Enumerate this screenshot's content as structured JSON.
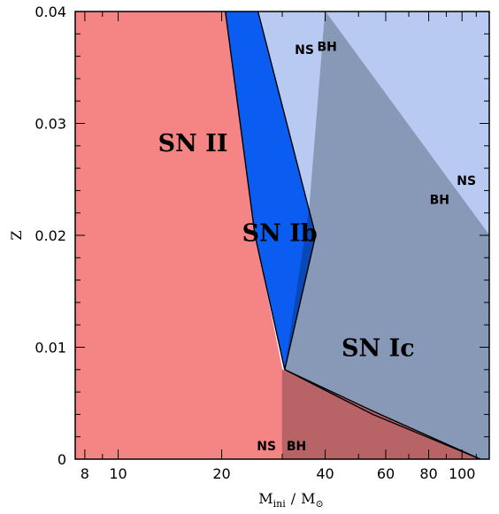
{
  "chart_data": {
    "type": "area",
    "title": "",
    "xlabel": "M_ini / M_⊙",
    "xlabel_main": "M",
    "xlabel_sub": "ini",
    "xlabel_sep": "/",
    "xlabel_unit": "M",
    "xlabel_unit_sub": "⊙",
    "ylabel": "Z",
    "xscale": "log",
    "xlim": [
      7.5,
      120
    ],
    "ylim": [
      0,
      0.04
    ],
    "xticks": [
      8,
      10,
      20,
      40,
      60,
      80,
      100
    ],
    "xtick_labels": [
      "8",
      "10",
      "20",
      "40",
      "60",
      "80",
      "100"
    ],
    "yticks": [
      0,
      0.01,
      0.02,
      0.03,
      0.04
    ],
    "ytick_labels": [
      "0",
      "0.01",
      "0.02",
      "0.03",
      "0.04"
    ],
    "regions": [
      {
        "name": "SN II",
        "color": "#f48584",
        "polygon": [
          [
            7.5,
            0
          ],
          [
            30,
            0
          ],
          [
            30,
            0.008
          ],
          [
            25,
            0.02
          ],
          [
            20.5,
            0.04
          ],
          [
            7.5,
            0.04
          ]
        ]
      },
      {
        "name": "SN II (BH)",
        "color": "#b86467",
        "polygon": [
          [
            30,
            0
          ],
          [
            120,
            0
          ],
          [
            30,
            0.008
          ]
        ]
      },
      {
        "name": "SN Ib",
        "color": "#0b5cf0",
        "polygon": [
          [
            20.5,
            0.04
          ],
          [
            25.5,
            0.04
          ],
          [
            37.5,
            0.02
          ],
          [
            30.5,
            0.008
          ],
          [
            25,
            0.02
          ]
        ]
      },
      {
        "name": "SN Ib (BH)",
        "color": "#0a48b8",
        "polygon": [
          [
            37.5,
            0.02
          ],
          [
            36,
            0.0225
          ],
          [
            30.5,
            0.008
          ]
        ]
      },
      {
        "name": "SN Ib (low Z)",
        "color": "#0b5cf0",
        "polygon": [
          [
            30.5,
            0.008
          ],
          [
            55,
            0.0043
          ],
          [
            113,
            0
          ]
        ]
      },
      {
        "name": "SN Ic (NS)",
        "color": "#b8caf2",
        "polygon": [
          [
            25.5,
            0.04
          ],
          [
            120,
            0.04
          ],
          [
            120,
            0.02
          ],
          [
            40,
            0.04
          ],
          [
            37.5,
            0.02
          ],
          [
            36,
            0.0225
          ]
        ]
      },
      {
        "name": "SN Ic (BH)",
        "color": "#8799b7",
        "polygon": [
          [
            36,
            0.0225
          ],
          [
            40,
            0.04
          ],
          [
            120,
            0.02
          ],
          [
            120,
            0
          ],
          [
            113,
            0
          ],
          [
            55,
            0.0043
          ],
          [
            30.5,
            0.008
          ],
          [
            37.5,
            0.02
          ]
        ]
      }
    ],
    "boundaries": [
      [
        [
          20.5,
          0.04
        ],
        [
          25,
          0.02
        ],
        [
          30.5,
          0.008
        ],
        [
          37.5,
          0.02
        ],
        [
          25.5,
          0.04
        ]
      ],
      [
        [
          30.5,
          0.008
        ],
        [
          55,
          0.0043
        ],
        [
          113,
          0
        ]
      ],
      [
        [
          30.5,
          0.008
        ],
        [
          55,
          0.004
        ],
        [
          113,
          0
        ]
      ]
    ],
    "annotations": [
      {
        "text": "SN II",
        "x": 16.5,
        "y": 0.0275,
        "kind": "region"
      },
      {
        "text": "SN Ib",
        "x": 29.5,
        "y": 0.0195,
        "kind": "region"
      },
      {
        "text": "SN Ic",
        "x": 57,
        "y": 0.0092,
        "kind": "region"
      },
      {
        "text": "NS",
        "x": 34.8,
        "y": 0.0362,
        "kind": "remnant"
      },
      {
        "text": "BH",
        "x": 40.5,
        "y": 0.0365,
        "kind": "remnant"
      },
      {
        "text": "NS",
        "x": 103,
        "y": 0.0245,
        "kind": "remnant"
      },
      {
        "text": "BH",
        "x": 86,
        "y": 0.0228,
        "kind": "remnant"
      },
      {
        "text": "NS",
        "x": 27,
        "y": 0.0008,
        "kind": "remnant"
      },
      {
        "text": "BH",
        "x": 33,
        "y": 0.0008,
        "kind": "remnant"
      }
    ]
  }
}
